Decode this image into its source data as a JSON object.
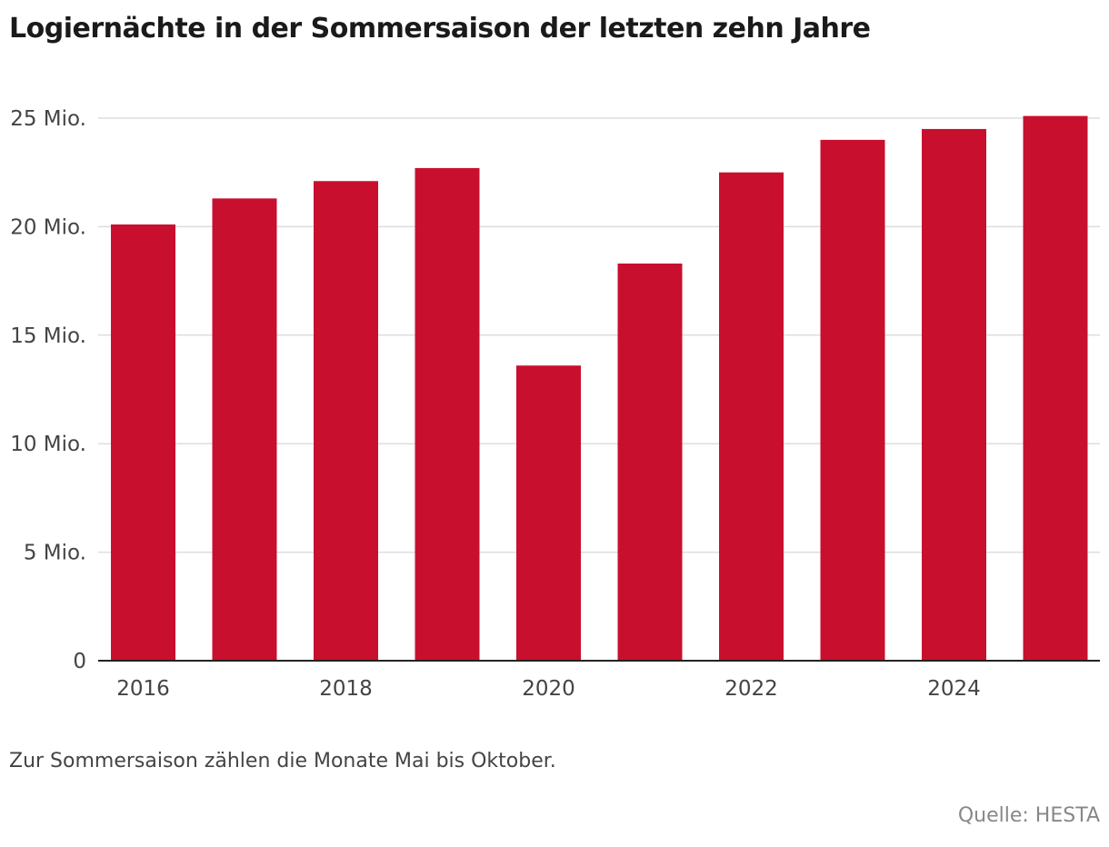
{
  "chart_data": {
    "type": "bar",
    "title": "Logiernächte in der Sommersaison der letzten zehn Jahre",
    "xlabel": "",
    "ylabel": "",
    "categories": [
      "2016",
      "2017",
      "2018",
      "2019",
      "2020",
      "2021",
      "2022",
      "2023",
      "2024",
      "2025"
    ],
    "x_tick_labels": [
      "2016",
      "",
      "2018",
      "",
      "2020",
      "",
      "2022",
      "",
      "2024",
      ""
    ],
    "values": [
      20.1,
      21.3,
      22.1,
      22.7,
      13.6,
      18.3,
      22.5,
      24.0,
      24.5,
      25.1
    ],
    "value_unit": "Mio.",
    "ylim": [
      0,
      25
    ],
    "y_ticks": [
      0,
      5,
      10,
      15,
      20,
      25
    ],
    "y_tick_labels": [
      "0",
      "5 Mio.",
      "10 Mio.",
      "15 Mio.",
      "20 Mio.",
      "25 Mio."
    ],
    "grid": true,
    "legend": "none",
    "note": "Zur Sommersaison zählen die Monate Mai bis Oktober.",
    "source": "Quelle: HESTA",
    "colors": {
      "bar": "#c8102e",
      "grid": "#dddddd",
      "axis": "#222222"
    }
  }
}
